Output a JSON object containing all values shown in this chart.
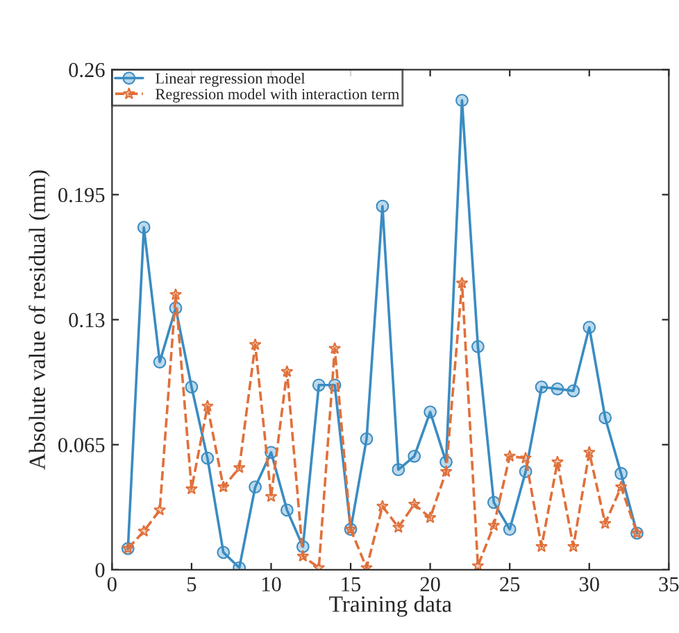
{
  "chart_data": {
    "type": "line",
    "xlabel": "Training data",
    "ylabel": "Absolute value of residual (mm)",
    "x": [
      1,
      2,
      3,
      4,
      5,
      6,
      7,
      8,
      9,
      10,
      11,
      12,
      13,
      14,
      15,
      16,
      17,
      18,
      19,
      20,
      21,
      22,
      23,
      24,
      25,
      26,
      27,
      28,
      29,
      30,
      31,
      32,
      33
    ],
    "series": [
      {
        "name": "Linear regression model",
        "color": "#3a8cc2",
        "marker": "circle",
        "line_style": "solid",
        "values": [
          0.011,
          0.178,
          0.108,
          0.136,
          0.095,
          0.058,
          0.009,
          0.001,
          0.043,
          0.061,
          0.031,
          0.012,
          0.096,
          0.096,
          0.021,
          0.068,
          0.189,
          0.052,
          0.059,
          0.082,
          0.056,
          0.244,
          0.116,
          0.035,
          0.021,
          0.051,
          0.095,
          0.094,
          0.093,
          0.126,
          0.079,
          0.05,
          0.019
        ]
      },
      {
        "name": "Regression model with interaction term",
        "color": "#e0703a",
        "marker": "star",
        "line_style": "dashed",
        "values": [
          0.011,
          0.02,
          0.031,
          0.143,
          0.042,
          0.085,
          0.043,
          0.053,
          0.117,
          0.038,
          0.103,
          0.007,
          0.001,
          0.115,
          0.021,
          0.001,
          0.033,
          0.022,
          0.034,
          0.027,
          0.051,
          0.149,
          0.002,
          0.023,
          0.059,
          0.058,
          0.012,
          0.056,
          0.012,
          0.061,
          0.024,
          0.043,
          0.019
        ]
      }
    ],
    "xlim": [
      0,
      35
    ],
    "xticks": [
      0,
      5,
      10,
      15,
      20,
      25,
      30,
      35
    ],
    "ylim": [
      0,
      0.26
    ],
    "yticks": [
      0,
      0.065,
      0.13,
      0.195,
      0.26
    ],
    "grid": false,
    "legend": "top left"
  }
}
